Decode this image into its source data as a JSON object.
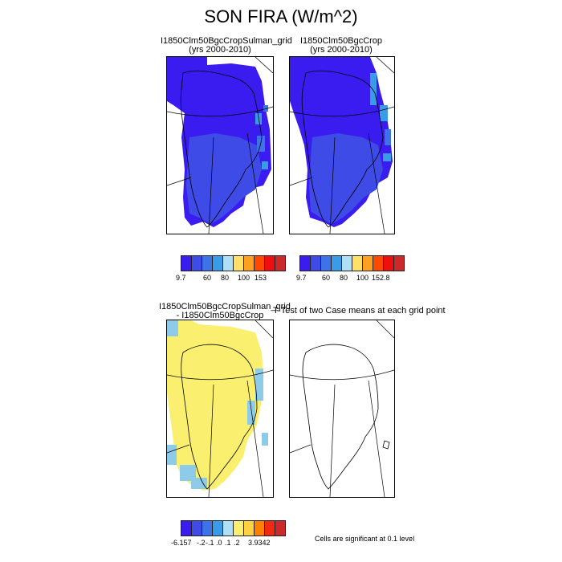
{
  "figure": {
    "title": "SON FIRA (W/m^2)"
  },
  "panels": {
    "p1": {
      "title_line1": "I1850Clm50BgcCropSulman_grid",
      "title_line2": "(yrs 2000-2010)"
    },
    "p2": {
      "title_line1": "I1850Clm50BgcCrop",
      "title_line2": "(yrs 2000-2010)"
    },
    "p3": {
      "title_line1": "I1850Clm50BgcCropSulman_grid",
      "title_line2": "- I1850Clm50BgcCrop"
    },
    "p4": {
      "title_line1": "T-Test of two Case means at each grid point"
    }
  },
  "colorbars": {
    "cb1": {
      "colors": [
        "#3a1cf0",
        "#3f4be6",
        "#3d72e8",
        "#3a9be9",
        "#aee0f5",
        "#ffe066",
        "#ffa020",
        "#ff4800",
        "#ee1010",
        "#cc2a2a"
      ],
      "labels": [
        "9.7",
        "60",
        "80",
        "100",
        "153"
      ]
    },
    "cb2": {
      "colors": [
        "#3a1cf0",
        "#3f4be6",
        "#3d72e8",
        "#3a9be9",
        "#aee0f5",
        "#ffe066",
        "#ffa020",
        "#ff4800",
        "#ee1010",
        "#cc2a2a"
      ],
      "labels": [
        "9.7",
        "60",
        "80",
        "100",
        "152.8"
      ]
    },
    "cb3": {
      "colors": [
        "#3a1cf0",
        "#3f4be6",
        "#3d72e8",
        "#3a9be9",
        "#aee0f5",
        "#fbef70",
        "#ffd040",
        "#ff8000",
        "#ee2a10",
        "#cc2a2a"
      ],
      "labels": [
        "-6.157",
        "-.2",
        "-.1",
        ".0",
        ".1",
        ".2",
        "3.9342"
      ]
    }
  },
  "footnote": "Cells are significant at 0.1 level",
  "colors": {
    "fill_low": "#3a1cf0",
    "fill_mid": "#3f4be6",
    "fill_edge": "#3a9be9",
    "diff_pos": "#fbef70",
    "diff_neg": "#8ecbe8"
  }
}
